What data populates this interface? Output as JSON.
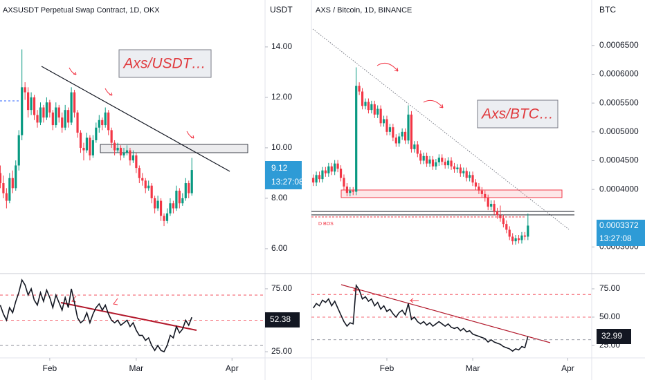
{
  "chart_data": [
    {
      "type": "candlestick",
      "title": "AXSUSDT Perpetual Swap Contract, 1D, OKX",
      "unit": "USDT",
      "countdown": "13:27:08",
      "annotation": "Axs/USDT…",
      "color_up": "#089981",
      "color_down": "#f23645",
      "xlim": [
        -16.1,
        69.7
      ],
      "ylim": [
        5.04,
        15.86
      ],
      "yticks": [
        {
          "value": 14,
          "label": "14.00"
        },
        {
          "value": 12,
          "label": "12.00"
        },
        {
          "value": 10,
          "label": "10.00"
        },
        {
          "value": 8,
          "label": "8.00"
        },
        {
          "value": 6,
          "label": "6.00"
        }
      ],
      "x": [
        -16,
        -15,
        -14,
        -13,
        -12,
        -11,
        -10,
        -9,
        -8,
        -7,
        -6,
        -5,
        -4,
        -3,
        -2,
        -1,
        0,
        1,
        2,
        3,
        4,
        5,
        6,
        7,
        8,
        9,
        10,
        11,
        12,
        13,
        14,
        15,
        16,
        17,
        18,
        19,
        20,
        21,
        22,
        23,
        24,
        25,
        26,
        27,
        28,
        29,
        30,
        31,
        32,
        33,
        34,
        35,
        36,
        37,
        38,
        39,
        40,
        41,
        42,
        43,
        44,
        45,
        46
      ],
      "ohlc": [
        [
          9.0,
          9.3,
          8.4,
          8.6
        ],
        [
          8.6,
          8.9,
          8.0,
          8.2
        ],
        [
          8.2,
          8.4,
          7.6,
          7.9
        ],
        [
          7.9,
          9.0,
          7.8,
          8.8
        ],
        [
          8.8,
          9.1,
          8.2,
          8.4
        ],
        [
          8.4,
          9.5,
          8.3,
          9.3
        ],
        [
          9.3,
          10.7,
          9.1,
          10.5
        ],
        [
          10.5,
          13.9,
          10.3,
          12.4
        ],
        [
          12.4,
          12.6,
          11.9,
          12.2
        ],
        [
          12.2,
          12.4,
          11.2,
          11.5
        ],
        [
          11.5,
          12.2,
          11.3,
          12.0
        ],
        [
          12.0,
          12.1,
          11.1,
          11.3
        ],
        [
          11.3,
          11.5,
          10.8,
          11.0
        ],
        [
          11.0,
          11.8,
          10.9,
          11.6
        ],
        [
          11.6,
          11.7,
          11.0,
          11.2
        ],
        [
          11.2,
          12.0,
          11.1,
          11.8
        ],
        [
          11.8,
          11.9,
          11.2,
          11.4
        ],
        [
          11.4,
          11.5,
          10.7,
          10.9
        ],
        [
          10.9,
          11.8,
          10.8,
          11.6
        ],
        [
          11.6,
          11.7,
          11.0,
          11.2
        ],
        [
          11.2,
          11.4,
          10.6,
          10.8
        ],
        [
          10.8,
          11.7,
          10.7,
          11.5
        ],
        [
          11.5,
          11.6,
          10.8,
          11.0
        ],
        [
          11.0,
          12.4,
          10.9,
          12.2
        ],
        [
          12.2,
          12.3,
          11.2,
          11.4
        ],
        [
          11.4,
          11.5,
          10.4,
          10.6
        ],
        [
          10.6,
          10.7,
          9.8,
          10.0
        ],
        [
          10.0,
          10.2,
          9.5,
          9.9
        ],
        [
          9.9,
          10.6,
          9.8,
          10.4
        ],
        [
          10.4,
          10.5,
          9.5,
          9.7
        ],
        [
          9.7,
          10.5,
          9.6,
          10.3
        ],
        [
          10.3,
          11.0,
          10.2,
          10.8
        ],
        [
          10.8,
          11.3,
          10.6,
          11.1
        ],
        [
          11.1,
          11.2,
          10.7,
          10.9
        ],
        [
          10.9,
          11.6,
          10.8,
          11.4
        ],
        [
          11.4,
          11.5,
          10.5,
          10.7
        ],
        [
          10.7,
          10.8,
          10.0,
          10.2
        ],
        [
          10.2,
          10.3,
          9.7,
          9.9
        ],
        [
          9.9,
          10.2,
          9.8,
          10.0
        ],
        [
          10.0,
          10.1,
          9.5,
          9.7
        ],
        [
          9.7,
          10.0,
          9.6,
          9.8
        ],
        [
          9.8,
          10.1,
          9.7,
          9.9
        ],
        [
          9.9,
          10.0,
          9.3,
          9.5
        ],
        [
          9.5,
          9.9,
          9.4,
          9.7
        ],
        [
          9.7,
          9.8,
          9.0,
          9.2
        ],
        [
          9.2,
          9.3,
          8.6,
          8.8
        ],
        [
          8.8,
          9.0,
          8.5,
          8.7
        ],
        [
          8.7,
          8.8,
          8.2,
          8.4
        ],
        [
          8.4,
          8.7,
          8.3,
          8.5
        ],
        [
          8.5,
          8.6,
          7.8,
          8.0
        ],
        [
          8.0,
          8.1,
          7.4,
          7.6
        ],
        [
          7.6,
          8.1,
          7.5,
          7.9
        ],
        [
          7.9,
          8.0,
          7.1,
          7.3
        ],
        [
          7.3,
          7.4,
          6.9,
          7.1
        ],
        [
          7.1,
          7.6,
          7.0,
          7.4
        ],
        [
          7.4,
          8.0,
          7.3,
          7.8
        ],
        [
          7.8,
          7.9,
          7.4,
          7.6
        ],
        [
          7.6,
          8.5,
          7.5,
          8.3
        ],
        [
          8.3,
          8.4,
          7.6,
          7.8
        ],
        [
          7.8,
          8.2,
          7.7,
          8.0
        ],
        [
          8.0,
          8.8,
          7.9,
          8.6
        ],
        [
          8.6,
          8.7,
          8.0,
          8.2
        ],
        [
          8.2,
          9.6,
          8.1,
          9.12
        ]
      ]
    },
    {
      "type": "line",
      "color": "#131722",
      "ylim": [
        20.1,
        86.5
      ],
      "yticks": [
        {
          "value": 75,
          "label": "75.00"
        },
        {
          "value": 25,
          "label": "25.00"
        }
      ],
      "levels": [
        70,
        50,
        30
      ],
      "level_colors": [
        "#f23645",
        "#f23645",
        "#787b86"
      ],
      "xticks": [
        {
          "value": 0,
          "label": "Feb"
        },
        {
          "value": 28,
          "label": "Mar"
        },
        {
          "value": 59,
          "label": "Apr"
        }
      ],
      "values": [
        62,
        55,
        50,
        60,
        56,
        65,
        72,
        82,
        78,
        70,
        75,
        66,
        62,
        72,
        65,
        74,
        68,
        60,
        70,
        64,
        58,
        68,
        60,
        75,
        64,
        52,
        48,
        50,
        56,
        48,
        55,
        60,
        63,
        58,
        62,
        55,
        50,
        48,
        50,
        46,
        48,
        50,
        45,
        48,
        42,
        38,
        38,
        34,
        36,
        30,
        26,
        30,
        26,
        25,
        30,
        38,
        36,
        45,
        40,
        43,
        50,
        46,
        52.38
      ]
    },
    {
      "type": "candlestick",
      "title": "AXS / Bitcoin, 1D, BINANCE",
      "unit": "BTC",
      "countdown": "13:27:08",
      "annotation": "Axs/BTC…",
      "label": "D BOS",
      "color_up": "#089981",
      "color_down": "#f23645",
      "xlim": [
        -24.6,
        66.8
      ],
      "ylim": [
        0.000255,
        0.000729
      ],
      "yticks": [
        {
          "value": 0.00065,
          "label": "0.0006500"
        },
        {
          "value": 0.0006,
          "label": "0.0006000"
        },
        {
          "value": 0.00055,
          "label": "0.0005500"
        },
        {
          "value": 0.0005,
          "label": "0.0005000"
        },
        {
          "value": 0.00045,
          "label": "0.0004500"
        },
        {
          "value": 0.0004,
          "label": "0.0004000"
        },
        {
          "value": 0.0003,
          "label": "0.0003000"
        }
      ],
      "x": [
        -24,
        -23,
        -22,
        -21,
        -20,
        -19,
        -18,
        -17,
        -16,
        -15,
        -14,
        -13,
        -12,
        -11,
        -10,
        -9,
        -8,
        -7,
        -6,
        -5,
        -4,
        -3,
        -2,
        -1,
        0,
        1,
        2,
        3,
        4,
        5,
        6,
        7,
        8,
        9,
        10,
        11,
        12,
        13,
        14,
        15,
        16,
        17,
        18,
        19,
        20,
        21,
        22,
        23,
        24,
        25,
        26,
        27,
        28,
        29,
        30,
        31,
        32,
        33,
        34,
        35,
        36,
        37,
        38,
        39,
        40,
        41,
        42,
        43,
        44,
        45,
        46
      ],
      "ohlc": [
        [
          0.00042,
          0.000426,
          0.000406,
          0.000412
        ],
        [
          0.000412,
          0.000431,
          0.000406,
          0.000425
        ],
        [
          0.000425,
          0.000431,
          0.000412,
          0.000418
        ],
        [
          0.000418,
          0.000439,
          0.000412,
          0.000433
        ],
        [
          0.000433,
          0.000439,
          0.000422,
          0.000428
        ],
        [
          0.000428,
          0.000446,
          0.000422,
          0.00044
        ],
        [
          0.00044,
          0.000446,
          0.000425,
          0.000431
        ],
        [
          0.000431,
          0.000451,
          0.000425,
          0.000445
        ],
        [
          0.000445,
          0.000451,
          0.00043,
          0.000436
        ],
        [
          0.000436,
          0.000442,
          0.000414,
          0.00042
        ],
        [
          0.00042,
          0.000426,
          0.000399,
          0.000405
        ],
        [
          0.000405,
          0.000411,
          0.000388,
          0.000394
        ],
        [
          0.000394,
          0.000404,
          0.000388,
          0.000398
        ],
        [
          0.000398,
          0.000404,
          0.00039,
          0.000396
        ],
        [
          0.000396,
          0.000612,
          0.00039,
          0.00058
        ],
        [
          0.00058,
          0.000586,
          0.000564,
          0.00057
        ],
        [
          0.00057,
          0.000576,
          0.000539,
          0.000545
        ],
        [
          0.000545,
          0.000558,
          0.000539,
          0.000552
        ],
        [
          0.000552,
          0.000558,
          0.000532,
          0.000538
        ],
        [
          0.000538,
          0.000554,
          0.000532,
          0.000548
        ],
        [
          0.000548,
          0.000554,
          0.000524,
          0.00053
        ],
        [
          0.00053,
          0.000546,
          0.000524,
          0.00054
        ],
        [
          0.00054,
          0.000546,
          0.000509,
          0.000515
        ],
        [
          0.000515,
          0.000528,
          0.000509,
          0.000522
        ],
        [
          0.000522,
          0.000528,
          0.000494,
          0.0005
        ],
        [
          0.0005,
          0.000514,
          0.000494,
          0.000508
        ],
        [
          0.000508,
          0.000514,
          0.000484,
          0.00049
        ],
        [
          0.00049,
          0.000496,
          0.000474,
          0.00048
        ],
        [
          0.00048,
          0.000498,
          0.000474,
          0.000492
        ],
        [
          0.000492,
          0.000506,
          0.000486,
          0.0005
        ],
        [
          0.0005,
          0.000506,
          0.000479,
          0.000485
        ],
        [
          0.000485,
          0.000546,
          0.000479,
          0.00053
        ],
        [
          0.00053,
          0.000536,
          0.000464,
          0.00047
        ],
        [
          0.00047,
          0.000484,
          0.000464,
          0.000478
        ],
        [
          0.000478,
          0.000484,
          0.000456,
          0.000462
        ],
        [
          0.000462,
          0.000468,
          0.000444,
          0.00045
        ],
        [
          0.00045,
          0.000464,
          0.000444,
          0.000458
        ],
        [
          0.000458,
          0.000464,
          0.000439,
          0.000445
        ],
        [
          0.000445,
          0.000458,
          0.000439,
          0.000452
        ],
        [
          0.000452,
          0.000458,
          0.000434,
          0.00044
        ],
        [
          0.00044,
          0.000453,
          0.000434,
          0.000447
        ],
        [
          0.000447,
          0.000461,
          0.000441,
          0.000455
        ],
        [
          0.000455,
          0.000461,
          0.000442,
          0.000448
        ],
        [
          0.000448,
          0.000454,
          0.000436,
          0.000442
        ],
        [
          0.000442,
          0.000456,
          0.000436,
          0.00045
        ],
        [
          0.00045,
          0.000456,
          0.000434,
          0.00044
        ],
        [
          0.00044,
          0.000446,
          0.000429,
          0.000435
        ],
        [
          0.000435,
          0.000444,
          0.000429,
          0.000438
        ],
        [
          0.000438,
          0.000444,
          0.000422,
          0.000428
        ],
        [
          0.000428,
          0.000438,
          0.000422,
          0.000432
        ],
        [
          0.000432,
          0.000438,
          0.000414,
          0.00042
        ],
        [
          0.00042,
          0.000431,
          0.000414,
          0.000425
        ],
        [
          0.000425,
          0.000431,
          0.000406,
          0.000412
        ],
        [
          0.000412,
          0.000418,
          0.000399,
          0.000405
        ],
        [
          0.000405,
          0.000411,
          0.000392,
          0.000398
        ],
        [
          0.000398,
          0.000404,
          0.000386,
          0.000392
        ],
        [
          0.000392,
          0.000398,
          0.000379,
          0.000385
        ],
        [
          0.000385,
          0.000391,
          0.000364,
          0.00037
        ],
        [
          0.00037,
          0.000381,
          0.000364,
          0.000375
        ],
        [
          0.000375,
          0.000381,
          0.000356,
          0.000362
        ],
        [
          0.000362,
          0.000368,
          0.000349,
          0.000355
        ],
        [
          0.000355,
          0.000372,
          0.000344,
          0.00035
        ],
        [
          0.00035,
          0.000356,
          0.000334,
          0.00034
        ],
        [
          0.00034,
          0.000346,
          0.000324,
          0.00033
        ],
        [
          0.00033,
          0.000336,
          0.000312,
          0.000318
        ],
        [
          0.000318,
          0.000324,
          0.000304,
          0.00031
        ],
        [
          0.00031,
          0.000321,
          0.000304,
          0.000315
        ],
        [
          0.000315,
          0.000321,
          0.000306,
          0.000312
        ],
        [
          0.000312,
          0.000326,
          0.000306,
          0.00032
        ],
        [
          0.00032,
          0.000326,
          0.000312,
          0.000318
        ],
        [
          0.000318,
          0.000358,
          0.000312,
          0.0003372
        ]
      ]
    },
    {
      "type": "line",
      "color": "#131722",
      "ylim": [
        14,
        87.8
      ],
      "yticks": [
        {
          "value": 75,
          "label": "75.00"
        },
        {
          "value": 50,
          "label": "50.00"
        },
        {
          "value": 25,
          "label": "25.00"
        }
      ],
      "levels": [
        70,
        50,
        30
      ],
      "level_colors": [
        "#f23645",
        "#f23645",
        "#787b86"
      ],
      "xticks": [
        {
          "value": 0,
          "label": "Feb"
        },
        {
          "value": 28,
          "label": "Mar"
        },
        {
          "value": 59,
          "label": "Apr"
        }
      ],
      "values": [
        58,
        62,
        60,
        65,
        63,
        66,
        60,
        64,
        58,
        52,
        46,
        42,
        45,
        44,
        78,
        74,
        66,
        68,
        64,
        66,
        60,
        63,
        57,
        60,
        55,
        57,
        53,
        50,
        54,
        56,
        52,
        62,
        48,
        50,
        46,
        44,
        46,
        43,
        45,
        42,
        44,
        46,
        44,
        42,
        44,
        41,
        40,
        41,
        38,
        40,
        37,
        38,
        35,
        34,
        33,
        32,
        31,
        28,
        30,
        28,
        27,
        26,
        24,
        23,
        22,
        20,
        22,
        21,
        24,
        23,
        32.99
      ]
    }
  ]
}
